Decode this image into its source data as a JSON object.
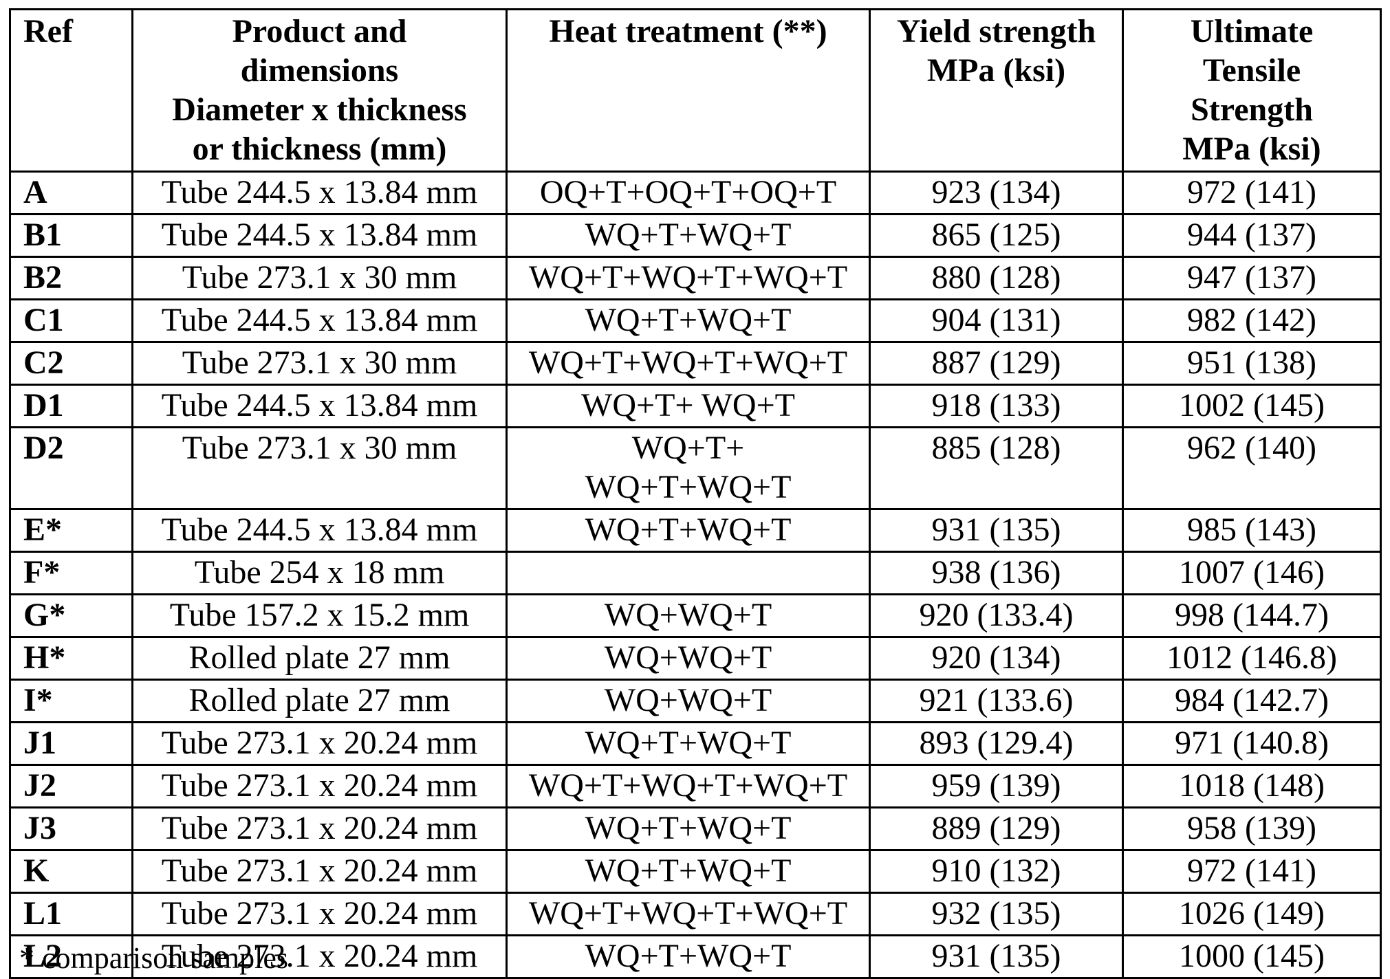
{
  "headers": {
    "ref": "Ref",
    "product": [
      "Product and",
      "dimensions",
      "Diameter x thickness",
      "or thickness (mm)"
    ],
    "heat_treatment": "Heat treatment (**)",
    "yield": [
      "Yield strength",
      "MPa (ksi)"
    ],
    "uts": [
      "Ultimate",
      "Tensile",
      "Strength",
      "MPa (ksi)"
    ]
  },
  "rows": [
    {
      "ref": "A",
      "product": "Tube 244.5 x 13.84 mm",
      "heat": "OQ+T+OQ+T+OQ+T",
      "heat2": "",
      "yield": "923 (134)",
      "uts": "972 (141)"
    },
    {
      "ref": "B1",
      "product": "Tube 244.5 x 13.84 mm",
      "heat": "WQ+T+WQ+T",
      "heat2": "",
      "yield": "865 (125)",
      "uts": "944 (137)"
    },
    {
      "ref": "B2",
      "product": "Tube 273.1 x 30 mm",
      "heat": "WQ+T+WQ+T+WQ+T",
      "heat2": "",
      "yield": "880 (128)",
      "uts": "947 (137)"
    },
    {
      "ref": "C1",
      "product": "Tube 244.5 x 13.84 mm",
      "heat": "WQ+T+WQ+T",
      "heat2": "",
      "yield": "904 (131)",
      "uts": "982 (142)"
    },
    {
      "ref": "C2",
      "product": "Tube 273.1 x 30 mm",
      "heat": "WQ+T+WQ+T+WQ+T",
      "heat2": "",
      "yield": "887 (129)",
      "uts": "951 (138)"
    },
    {
      "ref": "D1",
      "product": "Tube 244.5 x 13.84 mm",
      "heat": "WQ+T+ WQ+T",
      "heat2": "",
      "yield": "918 (133)",
      "uts": "1002 (145)"
    },
    {
      "ref": "D2",
      "product": "Tube 273.1 x 30 mm",
      "heat": "WQ+T+",
      "heat2": "WQ+T+WQ+T",
      "yield": "885 (128)",
      "uts": "962 (140)"
    },
    {
      "ref": "E*",
      "product": "Tube 244.5 x 13.84 mm",
      "heat": "WQ+T+WQ+T",
      "heat2": "",
      "yield": "931 (135)",
      "uts": "985 (143)"
    },
    {
      "ref": "F*",
      "product": "Tube 254 x 18 mm",
      "heat": "",
      "heat2": "",
      "yield": "938 (136)",
      "uts": "1007 (146)"
    },
    {
      "ref": "G*",
      "product": "Tube 157.2 x 15.2 mm",
      "heat": "WQ+WQ+T",
      "heat2": "",
      "yield": "920 (133.4)",
      "uts": "998 (144.7)"
    },
    {
      "ref": "H*",
      "product": "Rolled plate 27 mm",
      "heat": "WQ+WQ+T",
      "heat2": "",
      "yield": "920 (134)",
      "uts": "1012 (146.8)"
    },
    {
      "ref": "I*",
      "product": "Rolled plate 27 mm",
      "heat": "WQ+WQ+T",
      "heat2": "",
      "yield": "921 (133.6)",
      "uts": "984 (142.7)"
    },
    {
      "ref": "J1",
      "product": "Tube 273.1 x 20.24 mm",
      "heat": "WQ+T+WQ+T",
      "heat2": "",
      "yield": "893 (129.4)",
      "uts": "971 (140.8)"
    },
    {
      "ref": "J2",
      "product": "Tube 273.1 x 20.24 mm",
      "heat": "WQ+T+WQ+T+WQ+T",
      "heat2": "",
      "yield": "959 (139)",
      "uts": "1018 (148)"
    },
    {
      "ref": "J3",
      "product": "Tube 273.1 x 20.24 mm",
      "heat": "WQ+T+WQ+T",
      "heat2": "",
      "yield": "889 (129)",
      "uts": "958 (139)"
    },
    {
      "ref": "K",
      "product": "Tube 273.1 x 20.24 mm",
      "heat": "WQ+T+WQ+T",
      "heat2": "",
      "yield": "910 (132)",
      "uts": "972 (141)"
    },
    {
      "ref": "L1",
      "product": "Tube 273.1 x 20.24 mm",
      "heat": "WQ+T+WQ+T+WQ+T",
      "heat2": "",
      "yield": "932 (135)",
      "uts": "1026 (149)"
    },
    {
      "ref": "L2",
      "product": "Tube 273.1 x 20.24 mm",
      "heat": "WQ+T+WQ+T",
      "heat2": "",
      "yield": "931 (135)",
      "uts": "1000 (145)"
    }
  ],
  "footnote": "*  comparison samples"
}
